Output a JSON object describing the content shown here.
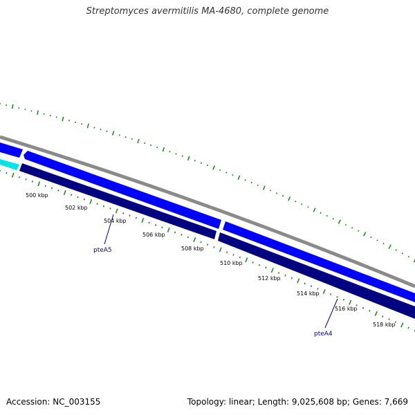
{
  "title": "Streptomyces avermitilis MA-4680, complete genome",
  "footer": {
    "accession": "Accession: NC_003155",
    "summary": "Topology: linear; Length: 9,025,608 bp; Genes: 7,669"
  },
  "colors": {
    "backbone": "#8a8a8a",
    "gene_forward": "#0000ff",
    "gene_reverse": "#000080",
    "gene_cyan": "#00e5e5",
    "gc_ticks": "#228b22",
    "gene_label": "#00008b"
  },
  "chart_data": {
    "type": "genome-map",
    "ruler_labels": [
      "500 kbp",
      "502 kbp",
      "504 kbp",
      "506 kbp",
      "508 kbp",
      "510 kbp",
      "512 kbp",
      "514 kbp",
      "516 kbp",
      "518 kbp"
    ],
    "gene_labels": [
      "pteA5",
      "pteA4"
    ]
  }
}
